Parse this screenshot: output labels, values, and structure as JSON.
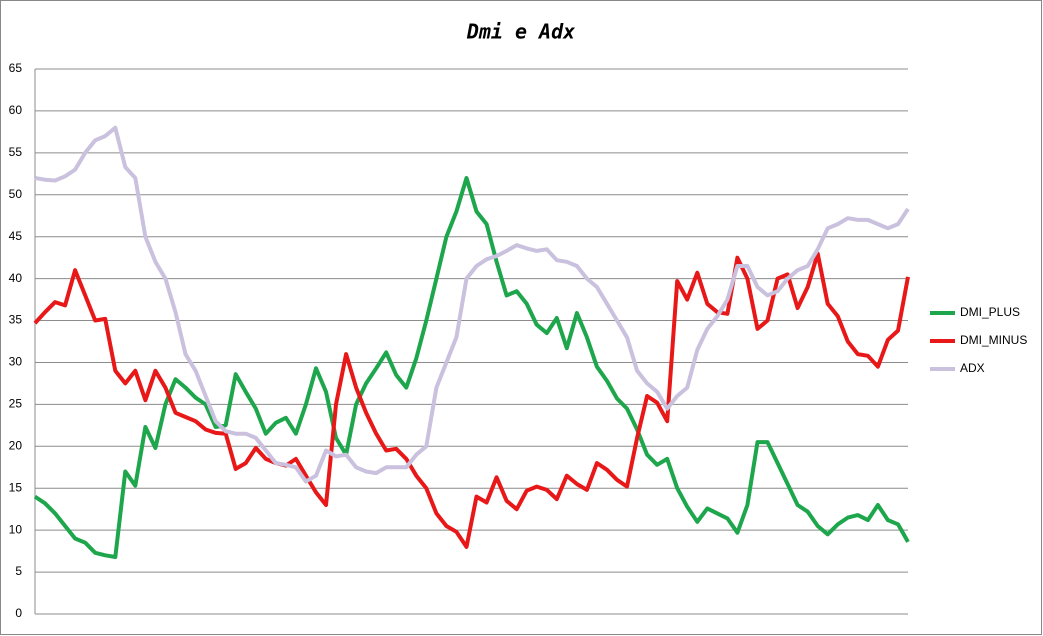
{
  "chart_data": {
    "type": "line",
    "title": "Dmi e Adx",
    "ylim": [
      0,
      65
    ],
    "yticks": [
      0,
      5,
      10,
      15,
      20,
      25,
      30,
      35,
      40,
      45,
      50,
      55,
      60,
      65
    ],
    "grid": true,
    "legend": "right",
    "series": [
      {
        "name": "DMI_PLUS",
        "color": "#1ea64c",
        "values": [
          14,
          13.2,
          12,
          10.5,
          9,
          8.5,
          7.3,
          7,
          6.8,
          17,
          15.3,
          22.3,
          19.8,
          25,
          28,
          27,
          25.8,
          25,
          22.3,
          22.5,
          28.6,
          26.5,
          24.5,
          21.5,
          22.8,
          23.4,
          21.5,
          25,
          29.3,
          26.5,
          21,
          19,
          25,
          27.5,
          29.3,
          31.2,
          28.5,
          27,
          30.5,
          35,
          40,
          45,
          48,
          52,
          48,
          46.5,
          42,
          38,
          38.5,
          37,
          34.5,
          33.5,
          35.3,
          31.7,
          35.9,
          33,
          29.5,
          27.8,
          25.7,
          24.5,
          22,
          19,
          17.8,
          18.5,
          15,
          12.8,
          11,
          12.6,
          12,
          11.4,
          9.7,
          13,
          20.5,
          20.5,
          18,
          15.5,
          13,
          12.2,
          10.5,
          9.5,
          10.7,
          11.5,
          11.8,
          11.2,
          13,
          11.2,
          10.7,
          8.6
        ]
      },
      {
        "name": "DMI_MINUS",
        "color": "#e81818",
        "values": [
          34.7,
          36,
          37.2,
          36.8,
          41,
          38,
          35,
          35.2,
          29,
          27.5,
          29,
          25.5,
          29,
          27,
          24,
          23.5,
          23,
          22,
          21.6,
          21.5,
          17.3,
          18,
          19.8,
          18.5,
          18,
          17.7,
          18.5,
          16.5,
          14.5,
          13,
          25,
          31,
          27,
          24,
          21.5,
          19.5,
          19.7,
          18.5,
          16.5,
          15,
          12,
          10.5,
          9.8,
          8,
          14,
          13.3,
          16.3,
          13.5,
          12.5,
          14.7,
          15.2,
          14.8,
          13.7,
          16.5,
          15.5,
          14.8,
          18,
          17.2,
          16,
          15.2,
          21,
          26,
          25.2,
          23,
          39.7,
          37.5,
          40.7,
          37,
          36,
          35.8,
          42.5,
          40,
          34,
          35,
          40,
          40.5,
          36.5,
          39,
          43,
          37,
          35.5,
          32.5,
          31,
          30.8,
          29.5,
          32.7,
          33.8,
          40.2
        ]
      },
      {
        "name": "ADX",
        "color": "#c9c1dd",
        "values": [
          52,
          51.8,
          51.7,
          52.2,
          53,
          55,
          56.5,
          57,
          58,
          53.3,
          52,
          45,
          42,
          40,
          36,
          31,
          29,
          26,
          23,
          21.8,
          21.5,
          21.5,
          21,
          19.5,
          18,
          17.8,
          17.5,
          15.8,
          16.5,
          19.5,
          18.8,
          19,
          17.5,
          17,
          16.8,
          17.5,
          17.5,
          17.5,
          19,
          20,
          27,
          30,
          33,
          40,
          41.5,
          42.3,
          42.7,
          43.3,
          44,
          43.6,
          43.3,
          43.5,
          42.2,
          42,
          41.5,
          40,
          39,
          37,
          35,
          33,
          29,
          27.5,
          26.5,
          24.5,
          26,
          27,
          31.5,
          34,
          35.5,
          37.5,
          41.5,
          41.5,
          39,
          38,
          38.5,
          40,
          41,
          41.5,
          43.5,
          46,
          46.5,
          47.2,
          47,
          47,
          46.5,
          46,
          46.5,
          48.3
        ]
      }
    ]
  }
}
